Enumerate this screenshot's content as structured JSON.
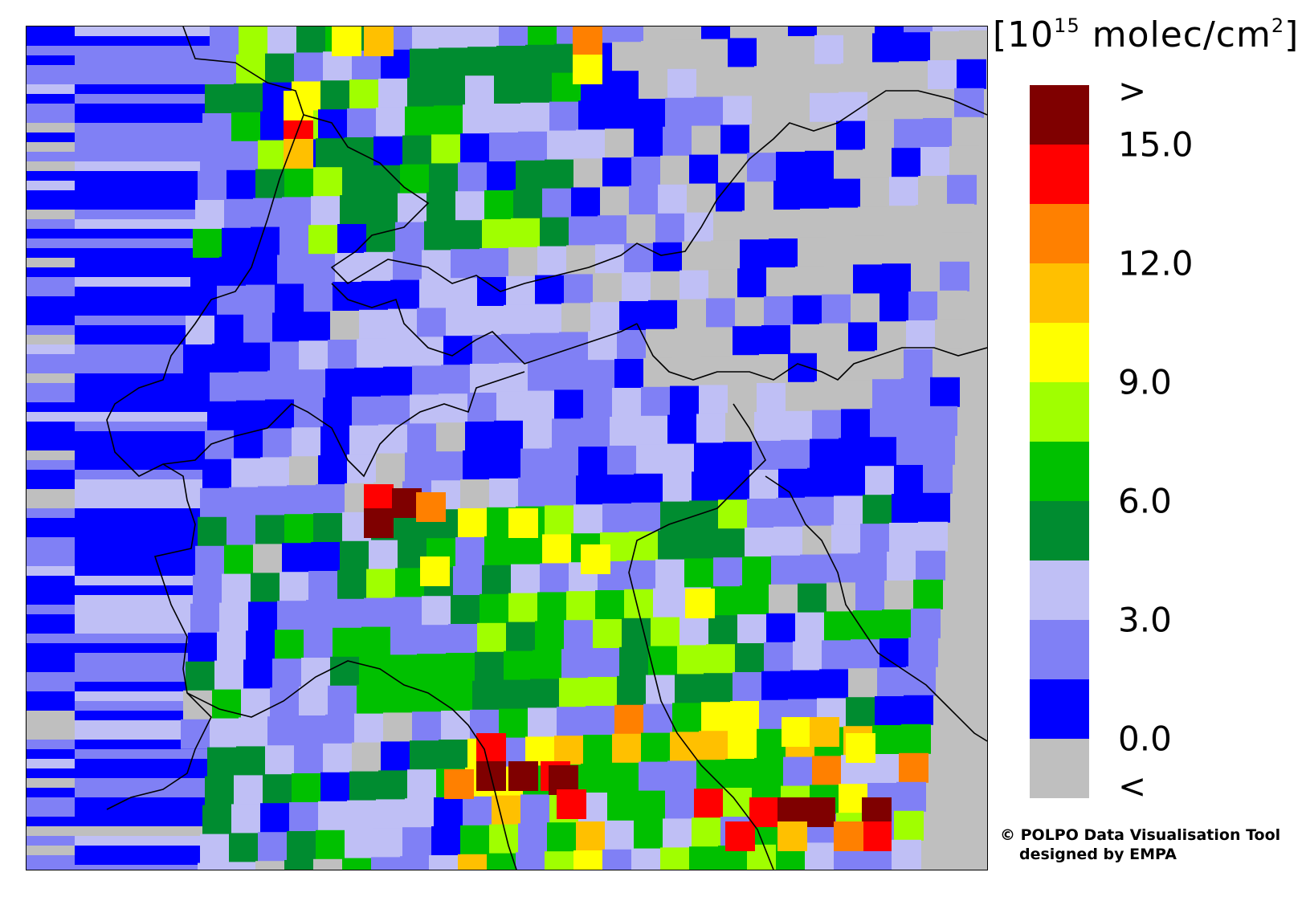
{
  "legend": {
    "unit_base": "10",
    "unit_exp": "15",
    "unit_rest": " molec/cm",
    "unit_sq": "2",
    "bins": [
      {
        "label": ">",
        "color": "#7f0000"
      },
      {
        "label": "15.0",
        "color": "#ff0000"
      },
      {
        "label": "",
        "color": "#ff8000"
      },
      {
        "label": "12.0",
        "color": "#ffc000"
      },
      {
        "label": "",
        "color": "#ffff00"
      },
      {
        "label": "9.0",
        "color": "#a0ff00"
      },
      {
        "label": "",
        "color": "#00c000"
      },
      {
        "label": "6.0",
        "color": "#008c30"
      },
      {
        "label": "",
        "color": "#bfbff5"
      },
      {
        "label": "3.0",
        "color": "#8080f5"
      },
      {
        "label": "",
        "color": "#0000ff"
      },
      {
        "label": "0.0",
        "color": "#bfbfbf"
      },
      {
        "label": "<",
        "color": ""
      }
    ]
  },
  "credit": {
    "line1": "© POLPO Data Visualisation Tool",
    "line2": "designed by EMPA"
  },
  "map": {
    "background_color": "#bfbfbf",
    "border_color": "#000000"
  }
}
